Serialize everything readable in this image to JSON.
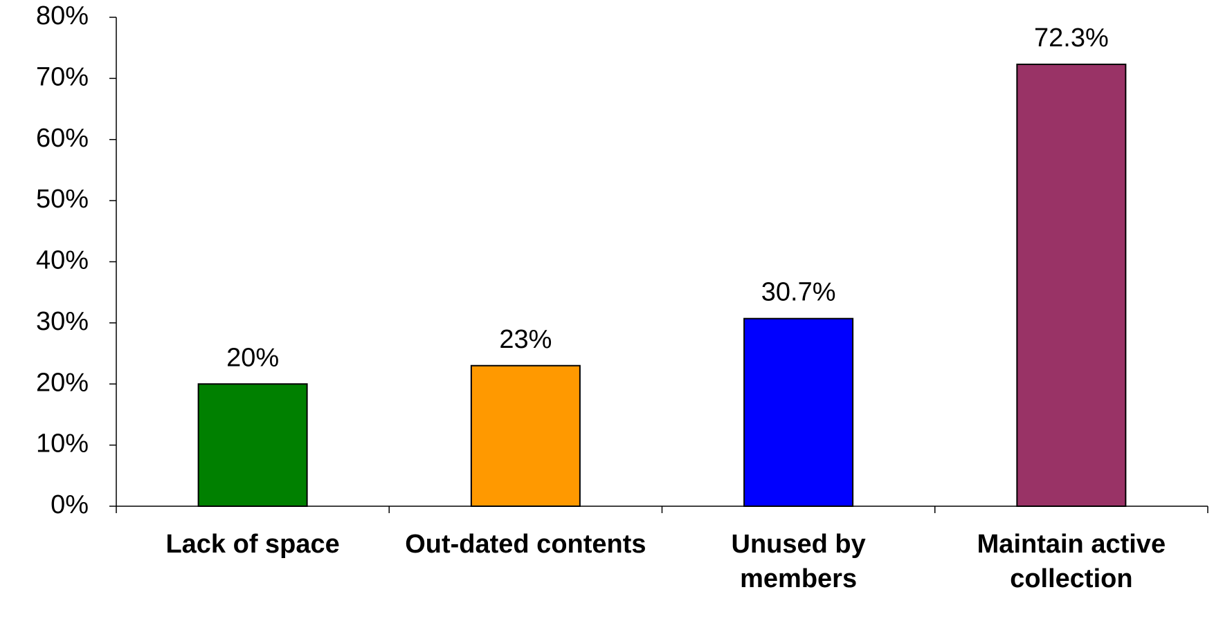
{
  "chart_data": {
    "type": "bar",
    "categories": [
      "Lack of space",
      "Out-dated contents",
      "Unused by members",
      "Maintain active collection"
    ],
    "values": [
      20,
      23,
      30.7,
      72.3
    ],
    "value_labels": [
      "20%",
      "23%",
      "30.7%",
      "72.3%"
    ],
    "colors": [
      "#008000",
      "#ff9900",
      "#0000ff",
      "#993366"
    ],
    "ylim": [
      0,
      80
    ],
    "yticks": [
      {
        "value": 0,
        "label": "0%"
      },
      {
        "value": 10,
        "label": "10%"
      },
      {
        "value": 20,
        "label": "20%"
      },
      {
        "value": 30,
        "label": "30%"
      },
      {
        "value": 40,
        "label": "40%"
      },
      {
        "value": 50,
        "label": "50%"
      },
      {
        "value": 60,
        "label": "60%"
      },
      {
        "value": 70,
        "label": "70%"
      },
      {
        "value": 80,
        "label": "80%"
      }
    ],
    "grid": false
  }
}
